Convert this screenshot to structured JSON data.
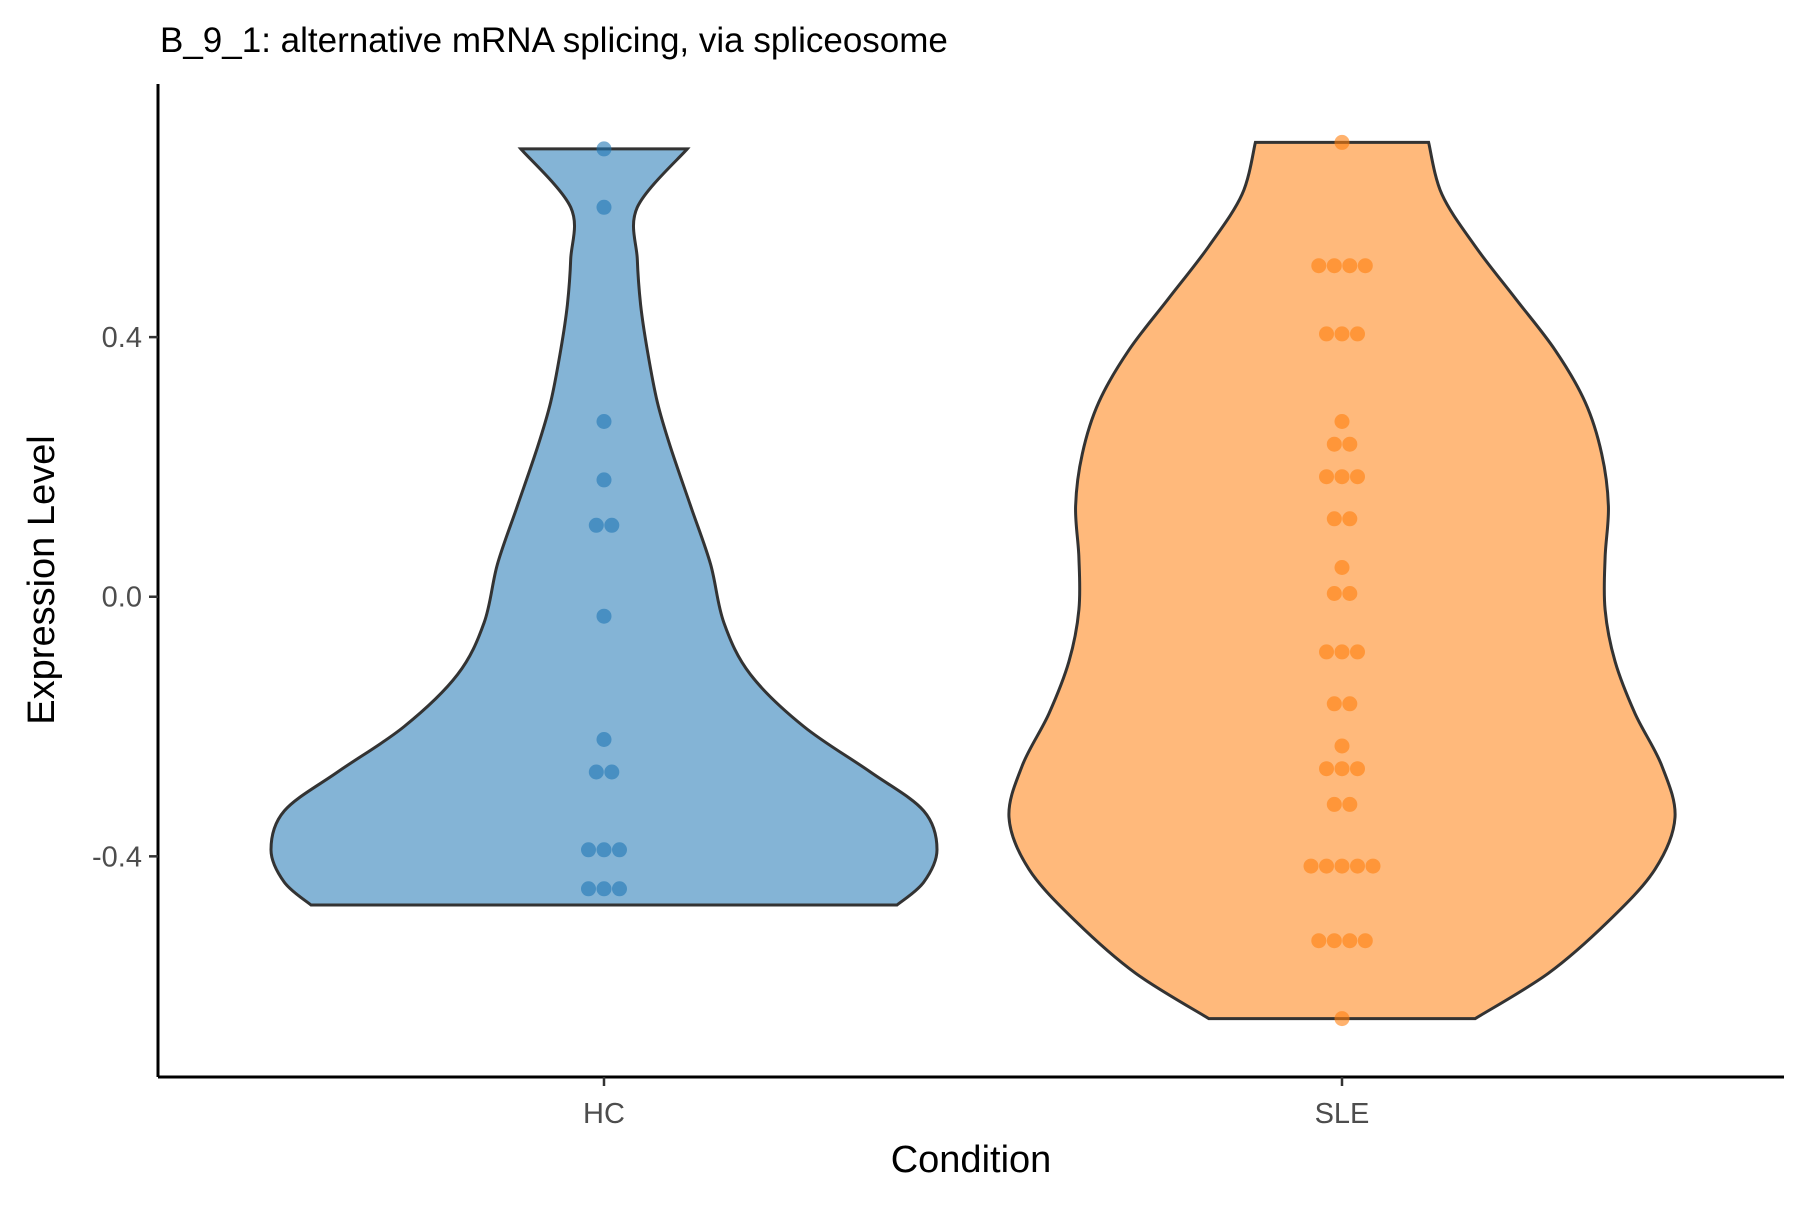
{
  "chart_data": {
    "type": "violin",
    "title": "B_9_1: alternative mRNA splicing, via spliceosome",
    "xlabel": "Condition",
    "ylabel": "Expression Level",
    "ylim": [
      -0.74,
      0.79
    ],
    "yticks": [
      -0.4,
      0.0,
      0.4
    ],
    "ytick_labels": [
      "-0.4",
      "0.0",
      "0.4"
    ],
    "categories": [
      "HC",
      "SLE"
    ],
    "legend": "none",
    "groups": [
      {
        "name": "HC",
        "color": "#1f77b4",
        "range": [
          -0.475,
          0.69
        ],
        "density": [
          [
            -0.475,
            0.88
          ],
          [
            -0.44,
            0.96
          ],
          [
            -0.39,
            1.0
          ],
          [
            -0.33,
            0.96
          ],
          [
            -0.27,
            0.8
          ],
          [
            -0.2,
            0.6
          ],
          [
            -0.12,
            0.44
          ],
          [
            -0.04,
            0.36
          ],
          [
            0.05,
            0.32
          ],
          [
            0.14,
            0.26
          ],
          [
            0.23,
            0.2
          ],
          [
            0.3,
            0.16
          ],
          [
            0.38,
            0.13
          ],
          [
            0.45,
            0.11
          ],
          [
            0.52,
            0.1
          ],
          [
            0.6,
            0.1
          ],
          [
            0.69,
            0.25
          ]
        ],
        "points": [
          {
            "y": 0.69,
            "n": 1
          },
          {
            "y": 0.6,
            "n": 1
          },
          {
            "y": 0.27,
            "n": 1
          },
          {
            "y": 0.18,
            "n": 1
          },
          {
            "y": 0.11,
            "n": 2
          },
          {
            "y": -0.03,
            "n": 1
          },
          {
            "y": -0.22,
            "n": 1
          },
          {
            "y": -0.27,
            "n": 2
          },
          {
            "y": -0.39,
            "n": 3
          },
          {
            "y": -0.45,
            "n": 3
          }
        ]
      },
      {
        "name": "SLE",
        "color": "#ff7f0e",
        "range": [
          -0.65,
          0.7
        ],
        "density": [
          [
            -0.65,
            0.4
          ],
          [
            -0.58,
            0.62
          ],
          [
            -0.5,
            0.8
          ],
          [
            -0.42,
            0.94
          ],
          [
            -0.34,
            1.0
          ],
          [
            -0.26,
            0.96
          ],
          [
            -0.18,
            0.88
          ],
          [
            -0.1,
            0.82
          ],
          [
            -0.02,
            0.79
          ],
          [
            0.06,
            0.79
          ],
          [
            0.14,
            0.8
          ],
          [
            0.22,
            0.78
          ],
          [
            0.3,
            0.73
          ],
          [
            0.38,
            0.64
          ],
          [
            0.46,
            0.52
          ],
          [
            0.54,
            0.4
          ],
          [
            0.62,
            0.3
          ],
          [
            0.7,
            0.26
          ]
        ],
        "points": [
          {
            "y": 0.7,
            "n": 1
          },
          {
            "y": 0.51,
            "n": 4
          },
          {
            "y": 0.405,
            "n": 3
          },
          {
            "y": 0.27,
            "n": 1
          },
          {
            "y": 0.235,
            "n": 2
          },
          {
            "y": 0.185,
            "n": 3
          },
          {
            "y": 0.12,
            "n": 2
          },
          {
            "y": 0.045,
            "n": 1
          },
          {
            "y": 0.005,
            "n": 2
          },
          {
            "y": -0.085,
            "n": 3
          },
          {
            "y": -0.165,
            "n": 2
          },
          {
            "y": -0.23,
            "n": 1
          },
          {
            "y": -0.265,
            "n": 3
          },
          {
            "y": -0.32,
            "n": 2
          },
          {
            "y": -0.415,
            "n": 5
          },
          {
            "y": -0.53,
            "n": 4
          },
          {
            "y": -0.65,
            "n": 1
          }
        ]
      }
    ]
  }
}
